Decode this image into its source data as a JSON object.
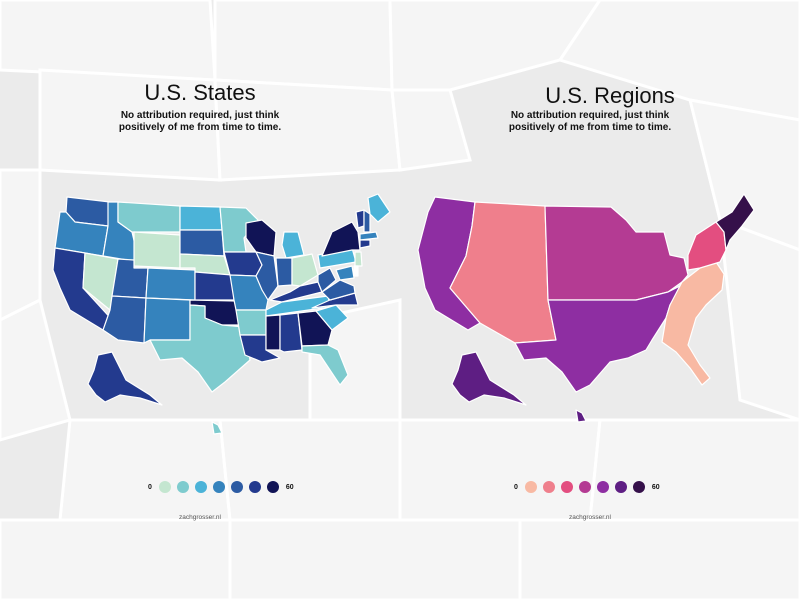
{
  "background_color": "#ebebeb",
  "left_panel": {
    "title": "U.S. States",
    "subtitle_line1": "No attribution required, just think",
    "subtitle_line2": "positively of me from time to time.",
    "legend_min": "0",
    "legend_max": "60",
    "legend_colors": [
      "#c4e6d0",
      "#7ecbce",
      "#4bb3d8",
      "#3583bd",
      "#2c5ba3",
      "#233a8e",
      "#111456"
    ],
    "credit": "zachgrosser.nl"
  },
  "right_panel": {
    "title": "U.S. Regions",
    "subtitle_line1": "No attribution required, just think",
    "subtitle_line2": "positively of me from time to time.",
    "legend_min": "0",
    "legend_max": "60",
    "legend_colors": [
      "#f8b9a3",
      "#ef7f8c",
      "#e34e80",
      "#b43b93",
      "#8e2ea2",
      "#5e1e83",
      "#35104a"
    ],
    "credit": "zachgrosser.nl"
  }
}
